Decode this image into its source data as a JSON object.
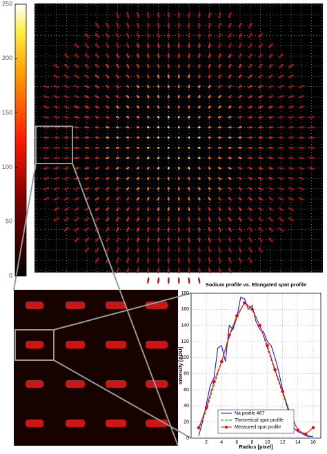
{
  "chart_data": [
    {
      "type": "colorbar",
      "ylim": [
        0,
        250
      ],
      "yticks": [
        0,
        50,
        100,
        150,
        200,
        250
      ]
    },
    {
      "type": "line",
      "title": "Sodium profile vs. Elongated spot profile",
      "x_label": "Radius [pixel]",
      "y_label": "Intensity [ADU]",
      "xlim": [
        0,
        17
      ],
      "xticks": [
        2,
        4,
        6,
        8,
        10,
        12,
        14,
        16
      ],
      "ylim": [
        0,
        180
      ],
      "yticks": [
        0,
        20,
        40,
        60,
        80,
        100,
        120,
        140,
        160,
        180
      ],
      "grid": true,
      "legend": "lower center",
      "series": [
        {
          "name": "Na profile #67",
          "color": "#0000ff",
          "style": "solid",
          "x": [
            1,
            1.5,
            2,
            2.5,
            3,
            3.5,
            4,
            4.5,
            5,
            5.5,
            6,
            6.5,
            7,
            7.5,
            8,
            8.5,
            9,
            9.5,
            10,
            10.5,
            11,
            11.5,
            12,
            12.5,
            13,
            13.5,
            14,
            14.5,
            15,
            15.5,
            16
          ],
          "values": [
            3,
            20,
            42,
            65,
            75,
            112,
            115,
            95,
            140,
            135,
            150,
            175,
            173,
            160,
            165,
            145,
            135,
            132,
            120,
            115,
            100,
            82,
            60,
            42,
            25,
            12,
            8,
            6,
            3,
            2,
            2
          ]
        },
        {
          "name": "Theoretical spot profile",
          "color": "#008000",
          "style": "dashed",
          "x": [
            1,
            2,
            3,
            4,
            5,
            6,
            7,
            8,
            9,
            10,
            11,
            12,
            13,
            14,
            15,
            16
          ],
          "values": [
            10,
            35,
            65,
            95,
            125,
            150,
            168,
            162,
            140,
            112,
            83,
            55,
            28,
            10,
            4,
            2
          ]
        },
        {
          "name": "Measured spot profile",
          "color": "#ff0000",
          "style": "solid",
          "marker": "o",
          "x": [
            1,
            2,
            3,
            4,
            5,
            6,
            7,
            8,
            9,
            10,
            11,
            12,
            13,
            14,
            15,
            16
          ],
          "values": [
            13,
            38,
            70,
            95,
            128,
            152,
            168,
            160,
            140,
            115,
            85,
            58,
            30,
            10,
            5,
            13
          ]
        }
      ]
    }
  ]
}
